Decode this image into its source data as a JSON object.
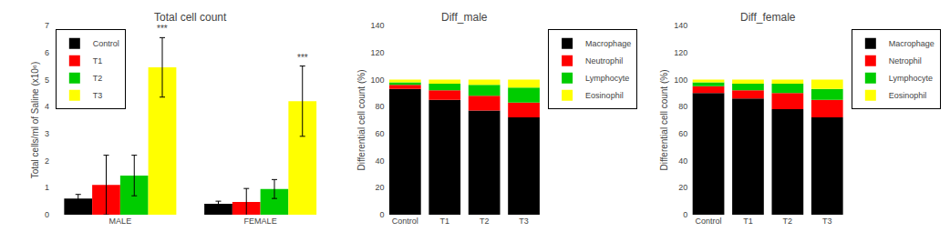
{
  "chart_data": [
    {
      "type": "bar",
      "title": "Total cell count",
      "categories": [
        "MALE",
        "FEMALE"
      ],
      "series": [
        {
          "name": "Control",
          "color": "#000000",
          "values": [
            0.6,
            0.4
          ],
          "errors": [
            0.15,
            0.1
          ]
        },
        {
          "name": "T1",
          "color": "#ff0000",
          "values": [
            1.1,
            0.47
          ],
          "errors": [
            1.1,
            0.5
          ]
        },
        {
          "name": "T2",
          "color": "#00cc00",
          "values": [
            1.45,
            0.95
          ],
          "errors": [
            0.75,
            0.35
          ]
        },
        {
          "name": "T3",
          "color": "#ffff00",
          "values": [
            5.45,
            4.2
          ],
          "errors": [
            1.1,
            1.3
          ]
        }
      ],
      "ylabel": "Total cells/ml of Saline (x10⁶)",
      "ylim": [
        0,
        7
      ],
      "yticks": [
        0,
        1,
        2,
        3,
        4,
        5,
        6,
        7
      ],
      "legend": "upper left",
      "grid": false,
      "annotations": [
        {
          "text": "***",
          "category": "MALE",
          "series": "T3"
        },
        {
          "text": "***",
          "category": "FEMALE",
          "series": "T3"
        }
      ]
    },
    {
      "type": "bar",
      "stacked": true,
      "title": "Diff_male",
      "categories": [
        "Control",
        "T1",
        "T2",
        "T3"
      ],
      "series": [
        {
          "name": "Macrophage",
          "color": "#000000",
          "values": [
            93,
            85,
            77,
            72
          ]
        },
        {
          "name": "Neutrophil",
          "color": "#ff0000",
          "values": [
            3,
            7,
            11,
            11
          ]
        },
        {
          "name": "Lymphocyte",
          "color": "#00cc00",
          "values": [
            2,
            5,
            8,
            11
          ]
        },
        {
          "name": "Eosinophil",
          "color": "#ffff00",
          "values": [
            2,
            3,
            4,
            6
          ]
        }
      ],
      "ylabel": "Differential cell count (%)",
      "ylim": [
        0,
        140
      ],
      "yticks": [
        0,
        20,
        40,
        60,
        80,
        100,
        120,
        140
      ],
      "legend": "upper right",
      "grid": false
    },
    {
      "type": "bar",
      "stacked": true,
      "title": "Diff_female",
      "categories": [
        "Control",
        "T1",
        "T2",
        "T3"
      ],
      "series": [
        {
          "name": "Macrophage",
          "color": "#000000",
          "values": [
            90,
            86,
            78,
            72
          ]
        },
        {
          "name": "Netrophil",
          "color": "#ff0000",
          "values": [
            5,
            6,
            12,
            13
          ]
        },
        {
          "name": "Lymphocyte",
          "color": "#00cc00",
          "values": [
            3,
            5,
            7,
            8
          ]
        },
        {
          "name": "Eosinophil",
          "color": "#ffff00",
          "values": [
            2,
            3,
            3,
            7
          ]
        }
      ],
      "ylabel": "Differential cell count (%)",
      "ylim": [
        0,
        140
      ],
      "yticks": [
        0,
        20,
        40,
        60,
        80,
        100,
        120,
        140
      ],
      "legend": "upper right",
      "grid": false
    }
  ]
}
